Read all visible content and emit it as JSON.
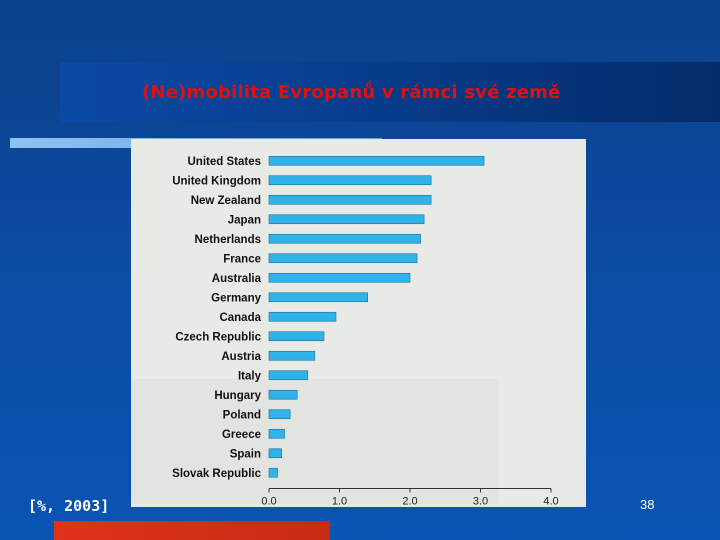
{
  "slide": {
    "title": "(Ne)mobilita Evropanů v rámci své země",
    "note": "[%, 2003]",
    "page_number": "38"
  },
  "colors": {
    "bar": "#2fb3e8",
    "title": "#e01010",
    "accent": "#e0331c"
  },
  "chart_data": {
    "type": "bar",
    "orientation": "horizontal",
    "categories": [
      "United States",
      "United Kingdom",
      "New Zealand",
      "Japan",
      "Netherlands",
      "France",
      "Australia",
      "Germany",
      "Canada",
      "Czech Republic",
      "Austria",
      "Italy",
      "Hungary",
      "Poland",
      "Greece",
      "Spain",
      "Slovak Republic"
    ],
    "values": [
      3.05,
      2.3,
      2.3,
      2.2,
      2.15,
      2.1,
      2.0,
      1.4,
      0.95,
      0.78,
      0.65,
      0.55,
      0.4,
      0.3,
      0.22,
      0.18,
      0.12
    ],
    "xlim": [
      0.0,
      4.0
    ],
    "xticks": [
      "0.0",
      "1.0",
      "2.0",
      "3.0",
      "4.0"
    ],
    "grid": false
  }
}
